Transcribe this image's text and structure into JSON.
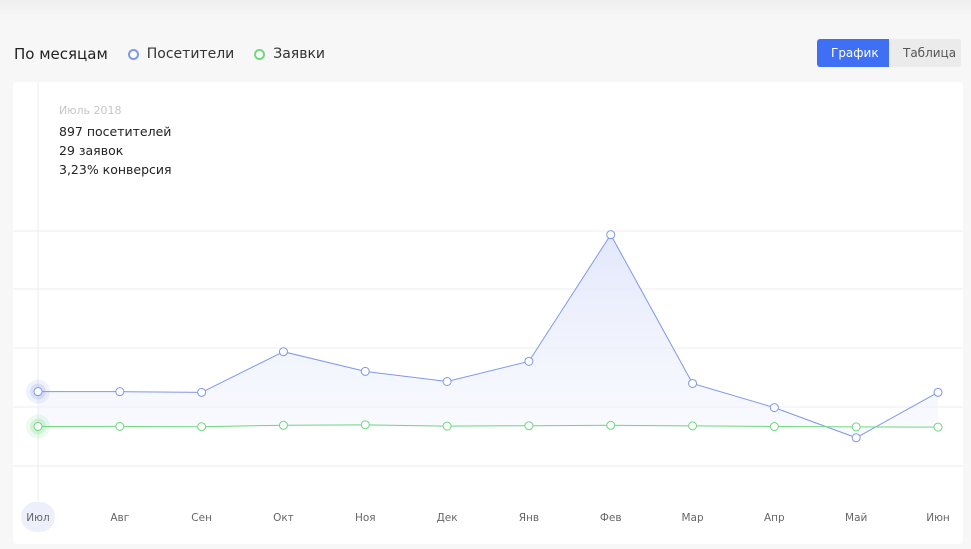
{
  "header": {
    "title": "По месяцам",
    "legend": [
      {
        "label": "Посетители",
        "color": "#7f98e8"
      },
      {
        "label": "Заявки",
        "color": "#6fd77f"
      }
    ]
  },
  "toggle": {
    "chart_label": "График",
    "table_label": "Таблица"
  },
  "tooltip": {
    "date": "Июль 2018",
    "visitors": "897 посетителей",
    "leads": "29 заявок",
    "conversion": "3,23% конверсия"
  },
  "colors": {
    "accent": "#3f6ff5",
    "visitors": "#7f98e8",
    "leads": "#6fd77f"
  },
  "chart_data": {
    "type": "area",
    "categories": [
      "Июл",
      "Авг",
      "Сен",
      "Окт",
      "Ноя",
      "Дек",
      "Янв",
      "Фев",
      "Мар",
      "Апр",
      "Май",
      "Июн"
    ],
    "selected_category": "Июл",
    "series": [
      {
        "name": "Посетители",
        "values": [
          897,
          897,
          880,
          1890,
          1400,
          1150,
          1650,
          4800,
          1100,
          500,
          -250,
          880
        ]
      },
      {
        "name": "Заявки",
        "values": [
          29,
          32,
          25,
          60,
          72,
          40,
          50,
          60,
          45,
          30,
          20,
          15
        ]
      }
    ],
    "ylim": [
      -1300,
      7900
    ],
    "grid": true
  }
}
